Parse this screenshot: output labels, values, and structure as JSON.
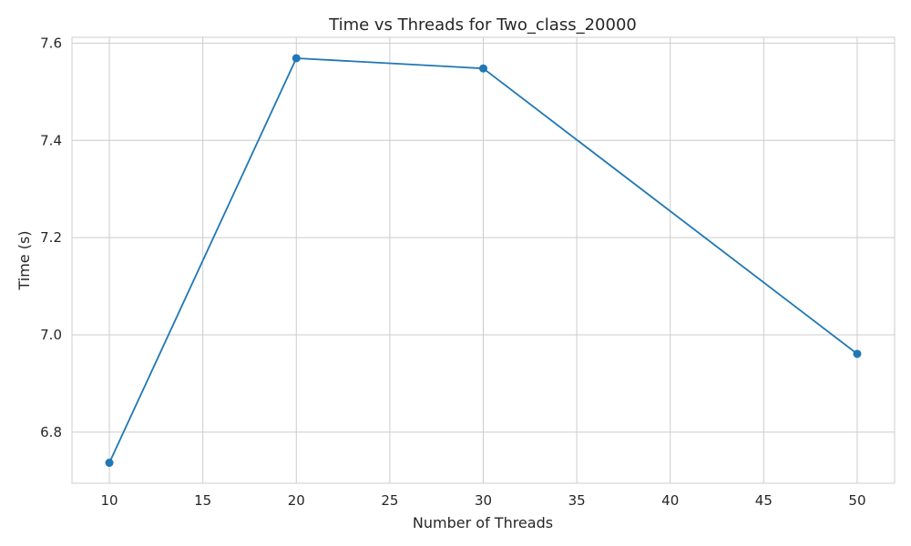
{
  "chart_data": {
    "type": "line",
    "title": "Time vs Threads for Two_class_20000",
    "xlabel": "Number of Threads",
    "ylabel": "Time (s)",
    "xlim": [
      8,
      52
    ],
    "ylim": [
      6.695,
      7.612
    ],
    "x_ticks": [
      10,
      15,
      20,
      25,
      30,
      35,
      40,
      45,
      50
    ],
    "y_ticks": [
      6.8,
      7.0,
      7.2,
      7.4,
      7.6
    ],
    "grid": true,
    "legend": "none",
    "series": [
      {
        "color": "#1f77b4",
        "marker": "circle",
        "points": [
          {
            "x": 10,
            "y": 6.737
          },
          {
            "x": 20,
            "y": 7.569
          },
          {
            "x": 30,
            "y": 7.548
          },
          {
            "x": 50,
            "y": 6.961
          }
        ]
      }
    ],
    "colors": {
      "line": "#1f77b4",
      "grid": "#cccccc",
      "spine": "#cccccc",
      "text": "#262626",
      "background": "#ffffff"
    }
  }
}
